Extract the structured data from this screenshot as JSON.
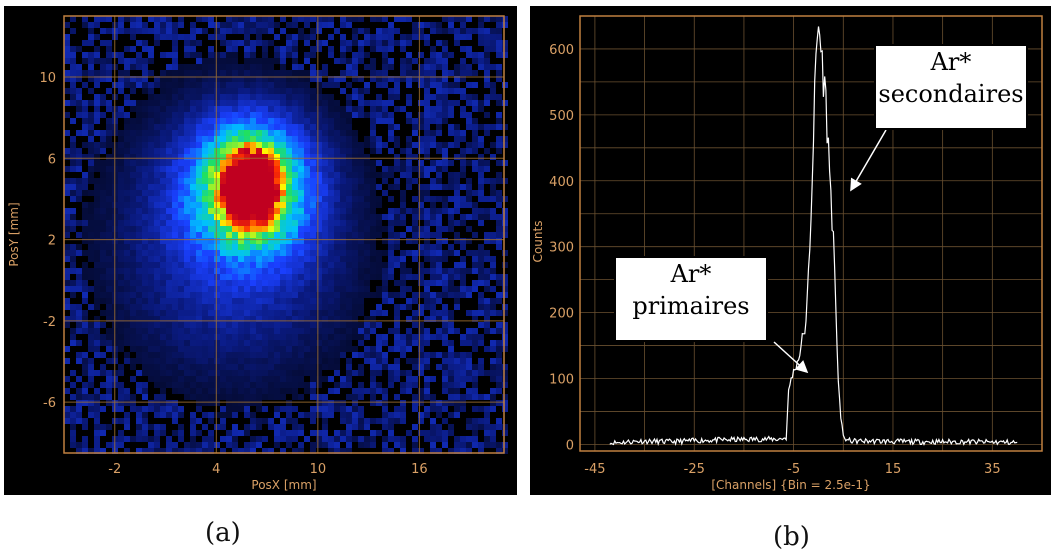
{
  "chart_data": [
    {
      "type": "heatmap",
      "xlabel": "PosX [mm]",
      "ylabel": "PosY [mm]",
      "xticks": [
        -2,
        4,
        10,
        16
      ],
      "yticks": [
        -6,
        -2,
        2,
        6,
        10
      ],
      "xlim": [
        -5,
        21
      ],
      "ylim": [
        -8.5,
        13
      ],
      "grid": true,
      "peak_center": {
        "x": 6.0,
        "y": 4.6
      },
      "colormap": [
        "#000000",
        "#0a1a80",
        "#1a40ff",
        "#00c0ff",
        "#20e060",
        "#ffff00",
        "#ff3000",
        "#c00020"
      ]
    },
    {
      "type": "line",
      "xlabel": "[Channels] {Bin = 2.5e-1}",
      "ylabel": "Counts",
      "xticks": [
        -45,
        -25,
        -5,
        15,
        35
      ],
      "yticks": [
        0,
        100,
        200,
        300,
        400,
        500,
        600
      ],
      "xlim": [
        -48,
        45
      ],
      "ylim": [
        -10,
        650
      ],
      "grid": true,
      "series": [
        {
          "x": [
            -42,
            -36,
            -30,
            -24,
            -18,
            -12,
            -8,
            -6.5,
            -6,
            -5.5,
            -5,
            -4.5,
            -4,
            -3.5,
            -3,
            -2.5,
            -2,
            -1.5,
            -1,
            -0.5,
            0,
            0.5,
            1,
            1.5,
            2,
            2.5,
            3,
            3.5,
            4,
            4.5,
            5,
            5.5,
            6,
            7,
            10,
            20,
            30,
            40
          ],
          "y": [
            2,
            5,
            4,
            6,
            7,
            8,
            8,
            10,
            80,
            100,
            110,
            120,
            130,
            150,
            170,
            180,
            260,
            350,
            470,
            580,
            640,
            600,
            560,
            520,
            450,
            380,
            310,
            200,
            100,
            40,
            12,
            8,
            6,
            5,
            5,
            4,
            4,
            3
          ]
        }
      ]
    }
  ],
  "annotations": {
    "secondaires": {
      "line1": "Ar*",
      "line2": "secondaires"
    },
    "primaires": {
      "line1": "Ar*",
      "line2": "primaires"
    }
  },
  "captions": {
    "a": "(a)",
    "b": "(b)"
  }
}
